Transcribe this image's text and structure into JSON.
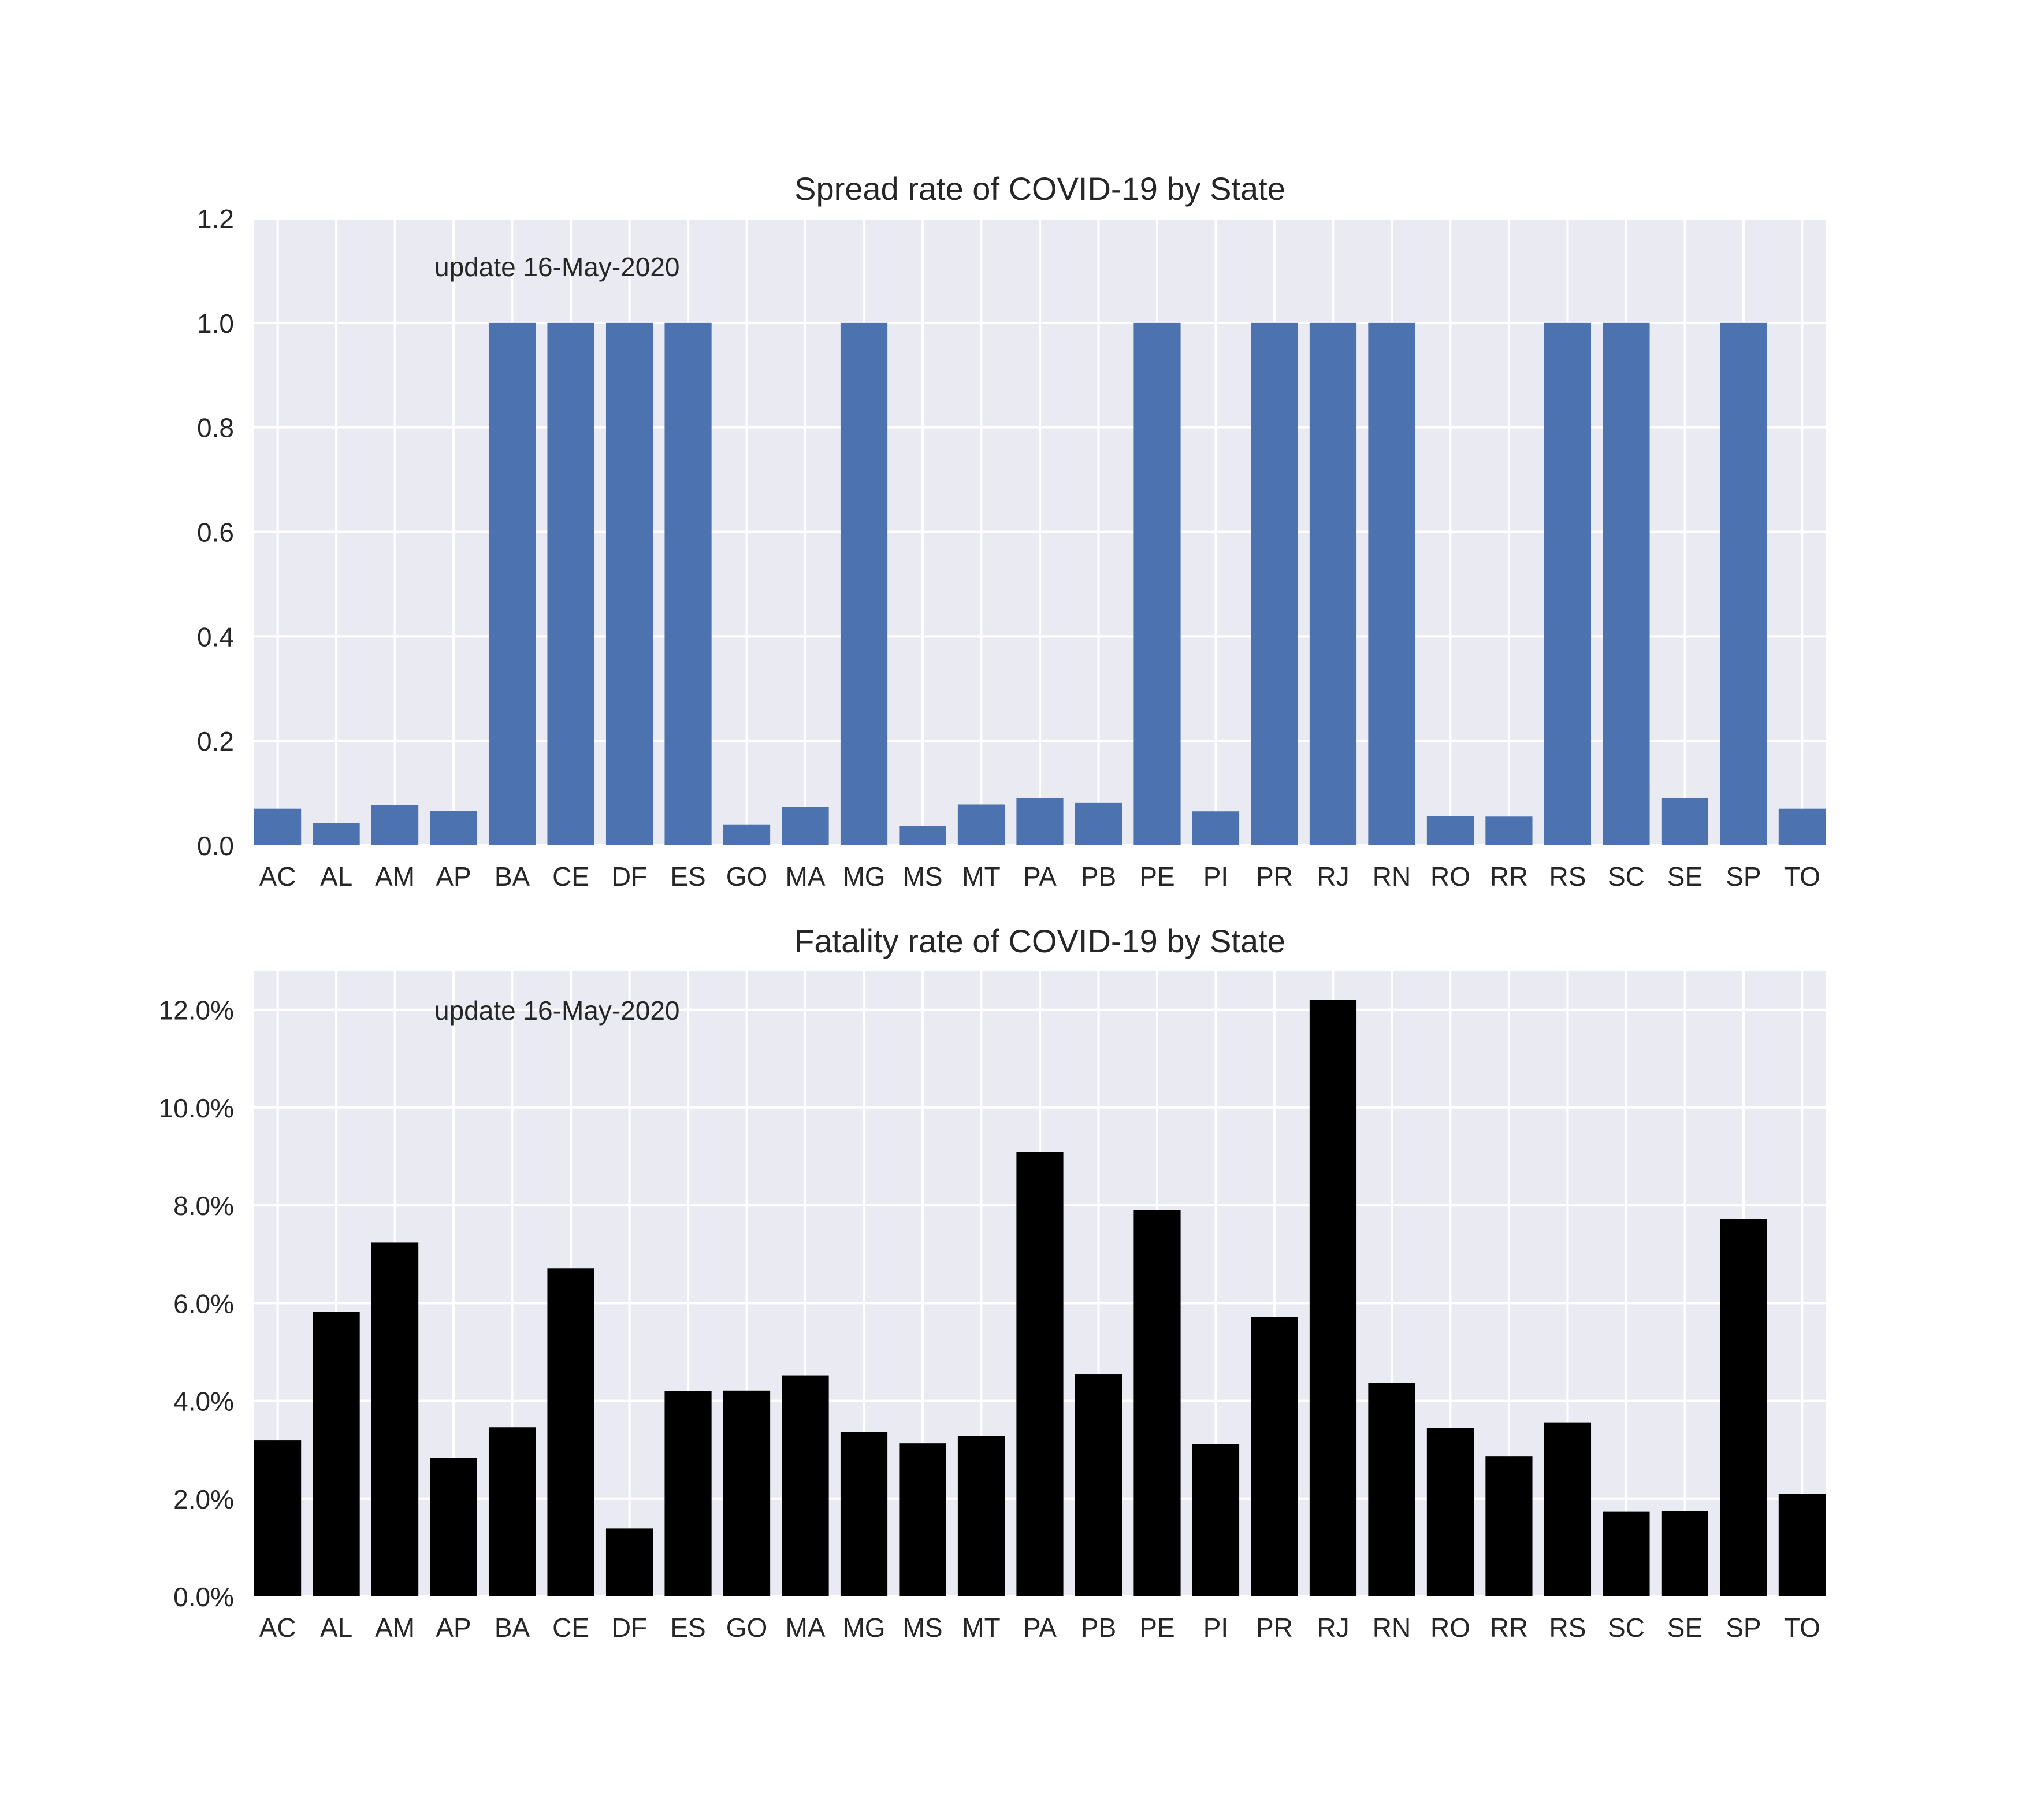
{
  "colors": {
    "background": "#ffffff",
    "plot_bg": "#eaeaf2",
    "grid": "#ffffff",
    "spread_bar": "#4c72b0",
    "fatality_bar": "#000000",
    "text": "#262626"
  },
  "chart_data": [
    {
      "type": "bar",
      "title": "Spread rate of COVID-19 by State",
      "annotation": "update 16-May-2020",
      "xlabel": "",
      "ylabel": "",
      "ylim": [
        0,
        1.2
      ],
      "yticks": [
        0,
        0.2,
        0.4,
        0.6,
        0.8,
        1.0,
        1.2
      ],
      "ytick_labels": [
        "0.0",
        "0.2",
        "0.4",
        "0.6",
        "0.8",
        "1.0",
        "1.2"
      ],
      "grid": true,
      "categories": [
        "AC",
        "AL",
        "AM",
        "AP",
        "BA",
        "CE",
        "DF",
        "ES",
        "GO",
        "MA",
        "MG",
        "MS",
        "MT",
        "PA",
        "PB",
        "PE",
        "PI",
        "PR",
        "RJ",
        "RN",
        "RO",
        "RR",
        "RS",
        "SC",
        "SE",
        "SP",
        "TO"
      ],
      "values": [
        0.07,
        0.043,
        0.077,
        0.066,
        1.0,
        1.0,
        1.0,
        1.0,
        0.039,
        0.073,
        1.0,
        0.037,
        0.078,
        0.09,
        0.082,
        1.0,
        0.065,
        1.0,
        1.0,
        1.0,
        0.056,
        0.055,
        1.0,
        1.0,
        0.09,
        1.0,
        0.07
      ]
    },
    {
      "type": "bar",
      "title": "Fatality rate of COVID-19 by State",
      "annotation": "update 16-May-2020",
      "xlabel": "",
      "ylabel": "",
      "ylim": [
        0,
        12.8
      ],
      "yticks": [
        0,
        2,
        4,
        6,
        8,
        10,
        12
      ],
      "ytick_labels": [
        "0.0%",
        "2.0%",
        "4.0%",
        "6.0%",
        "8.0%",
        "10.0%",
        "12.0%"
      ],
      "grid": true,
      "categories": [
        "AC",
        "AL",
        "AM",
        "AP",
        "BA",
        "CE",
        "DF",
        "ES",
        "GO",
        "MA",
        "MG",
        "MS",
        "MT",
        "PA",
        "PB",
        "PE",
        "PI",
        "PR",
        "RJ",
        "RN",
        "RO",
        "RR",
        "RS",
        "SC",
        "SE",
        "SP",
        "TO"
      ],
      "values": [
        3.19,
        5.82,
        7.24,
        2.83,
        3.46,
        6.71,
        1.39,
        4.2,
        4.21,
        4.52,
        3.36,
        3.13,
        3.28,
        9.1,
        4.55,
        7.9,
        3.12,
        5.72,
        12.2,
        4.37,
        3.44,
        2.87,
        3.55,
        1.73,
        1.74,
        7.72,
        2.1
      ]
    }
  ]
}
